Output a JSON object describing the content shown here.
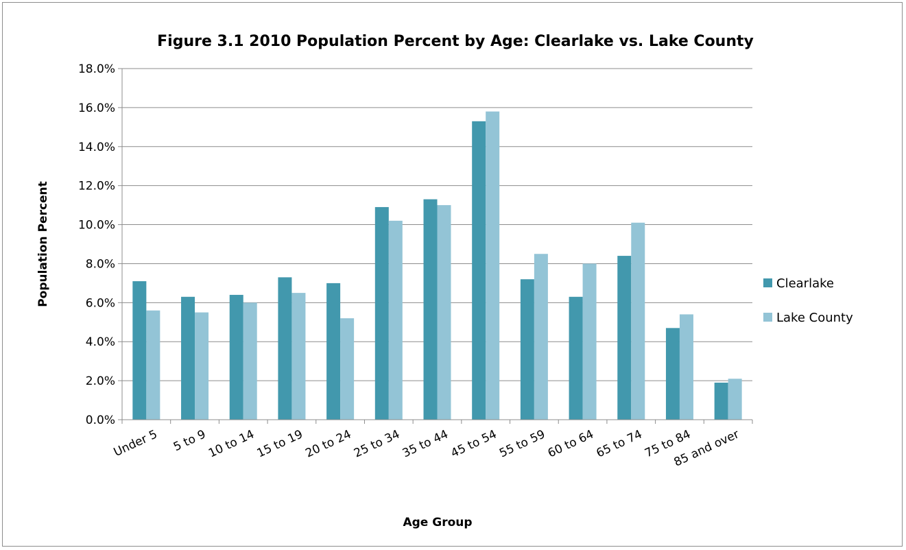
{
  "chart_data": {
    "type": "bar",
    "title": "Figure 3.1 2010 Population Percent by Age: Clearlake vs. Lake County",
    "xlabel": "Age Group",
    "ylabel": "Population Percent",
    "ylim": [
      0,
      18
    ],
    "yticks": [
      "0.0%",
      "2.0%",
      "4.0%",
      "6.0%",
      "8.0%",
      "10.0%",
      "12.0%",
      "14.0%",
      "16.0%",
      "18.0%"
    ],
    "grid": true,
    "legend_position": "right",
    "categories": [
      "Under 5",
      "5 to 9",
      "10 to 14",
      "15 to 19",
      "20 to 24",
      "25 to 34",
      "35 to 44",
      "45 to 54",
      "55 to 59",
      "60 to 64",
      "65 to 74",
      "75 to 84",
      "85  and over"
    ],
    "series": [
      {
        "name": "Clearlake",
        "color": "#4298ad",
        "values": [
          7.1,
          6.3,
          6.4,
          7.3,
          7.0,
          10.9,
          11.3,
          15.3,
          7.2,
          6.3,
          8.4,
          4.7,
          1.9
        ]
      },
      {
        "name": "Lake County",
        "color": "#93c4d6",
        "values": [
          5.6,
          5.5,
          6.0,
          6.5,
          5.2,
          10.2,
          11.0,
          15.8,
          8.5,
          8.0,
          10.1,
          5.4,
          2.1
        ]
      }
    ]
  }
}
